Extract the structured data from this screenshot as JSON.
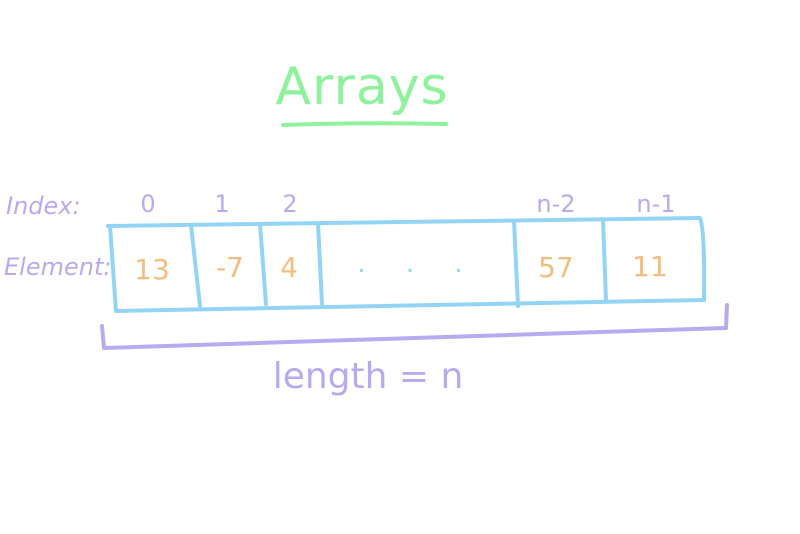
{
  "title": "Arrays",
  "row_labels": {
    "index": "Index:",
    "element": "Element:"
  },
  "cells": [
    {
      "index": "0",
      "value": "13"
    },
    {
      "index": "1",
      "value": "-7"
    },
    {
      "index": "2",
      "value": "4"
    },
    {
      "index": "",
      "value": ". . ."
    },
    {
      "index": "n-2",
      "value": "57"
    },
    {
      "index": "n-1",
      "value": "11"
    }
  ],
  "length_label": "length = n",
  "colors": {
    "title": "#8ef29c",
    "labels": "#b7aaf0",
    "values": "#f4bd7f",
    "array_box": "#93d4f4",
    "bracket": "#b7aaf0"
  }
}
